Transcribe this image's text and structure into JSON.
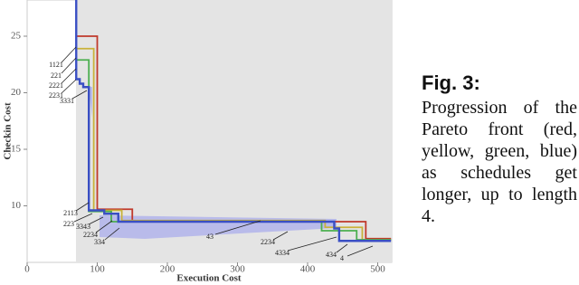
{
  "chart_data": {
    "type": "line",
    "x_label": "Execution Cost",
    "y_label": "Checkin Cost",
    "xlim": [
      0,
      520
    ],
    "ylim": [
      5,
      28.2
    ],
    "xticks": [
      0,
      100,
      200,
      300,
      400,
      500
    ],
    "yticks": [
      10,
      15,
      20,
      25
    ],
    "series": [
      {
        "name": "red",
        "color": "#c0392b",
        "x": [
          70,
          100,
          100,
          150,
          150,
          483,
          483,
          519
        ],
        "values": [
          25,
          25,
          9.7,
          9.7,
          8.6,
          8.6,
          7.1,
          7.1
        ]
      },
      {
        "name": "yellow",
        "color": "#c9b23a",
        "x": [
          70,
          95,
          95,
          135,
          135,
          425,
          425,
          478,
          478,
          519
        ],
        "values": [
          23.9,
          23.9,
          9.6,
          9.6,
          8.7,
          8.7,
          8.1,
          8.1,
          7.0,
          7.0
        ]
      },
      {
        "name": "green",
        "color": "#4caf50",
        "x": [
          70,
          88,
          88,
          120,
          120,
          420,
          420,
          470,
          470,
          519
        ],
        "values": [
          22.9,
          22.9,
          9.5,
          9.5,
          8.6,
          8.6,
          7.8,
          7.8,
          7.0,
          7.0
        ]
      },
      {
        "name": "blue",
        "color": "#3a4fc4",
        "x": [
          70,
          70,
          75,
          75,
          80,
          80,
          88,
          88,
          110,
          110,
          130,
          130,
          438,
          438,
          445,
          445,
          519
        ],
        "values": [
          28.2,
          21.2,
          21.2,
          20.8,
          20.8,
          20.5,
          20.5,
          9.6,
          9.6,
          9.3,
          9.3,
          8.6,
          8.6,
          8.0,
          8.0,
          6.9,
          6.9
        ]
      }
    ],
    "annotations": [
      "1121",
      "221",
      "2221",
      "2231",
      "3331",
      "2113",
      "223",
      "3343",
      "2234",
      "334",
      "43",
      "2234",
      "4334",
      "434",
      "4"
    ]
  },
  "caption": {
    "label": "Fig. 3:",
    "text": "Progression of the Pareto front (red, yellow, green, blue) as schedules get longer, up to length 4."
  }
}
